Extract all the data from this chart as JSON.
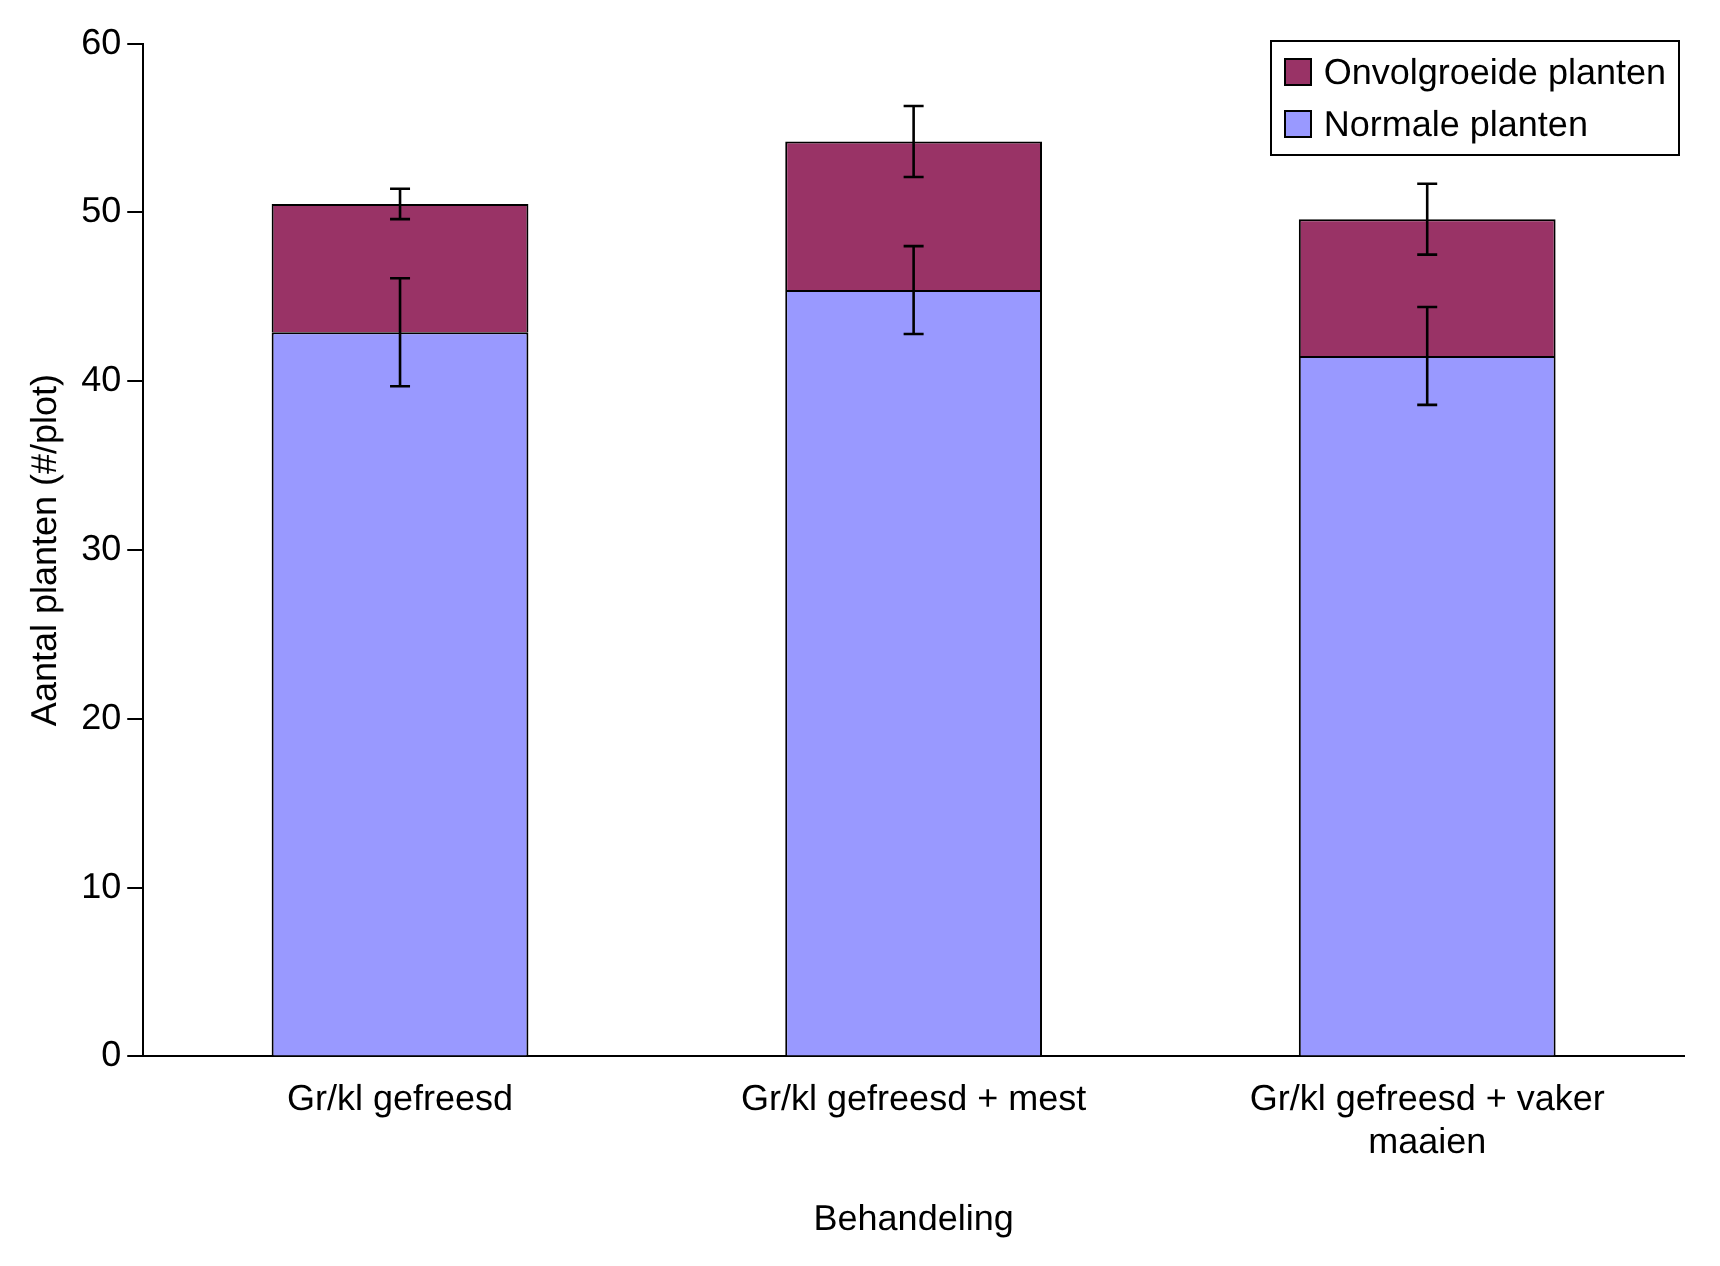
{
  "chart_data": {
    "type": "bar",
    "xlabel": "Behandeling",
    "ylabel": "Aantal planten (#/plot)",
    "categories": [
      "Gr/kl gefreesd",
      "Gr/kl gefreesd + mest",
      "Gr/kl gefreesd + vaker maaien"
    ],
    "stacked": true,
    "series": [
      {
        "name": "Normale planten",
        "color": "#9999ff",
        "values": [
          42.9,
          45.4,
          41.5
        ],
        "errors": [
          3.2,
          2.6,
          2.9
        ]
      },
      {
        "name": "Onvolgroeide planten",
        "color": "#993366",
        "values": [
          7.6,
          8.8,
          8.1
        ],
        "errors": [
          0.9,
          2.1,
          2.1
        ]
      }
    ],
    "ylim": [
      0,
      60
    ],
    "yticks": [
      0,
      10,
      20,
      30,
      40,
      50,
      60
    ],
    "grid": false,
    "legend": "top right"
  }
}
